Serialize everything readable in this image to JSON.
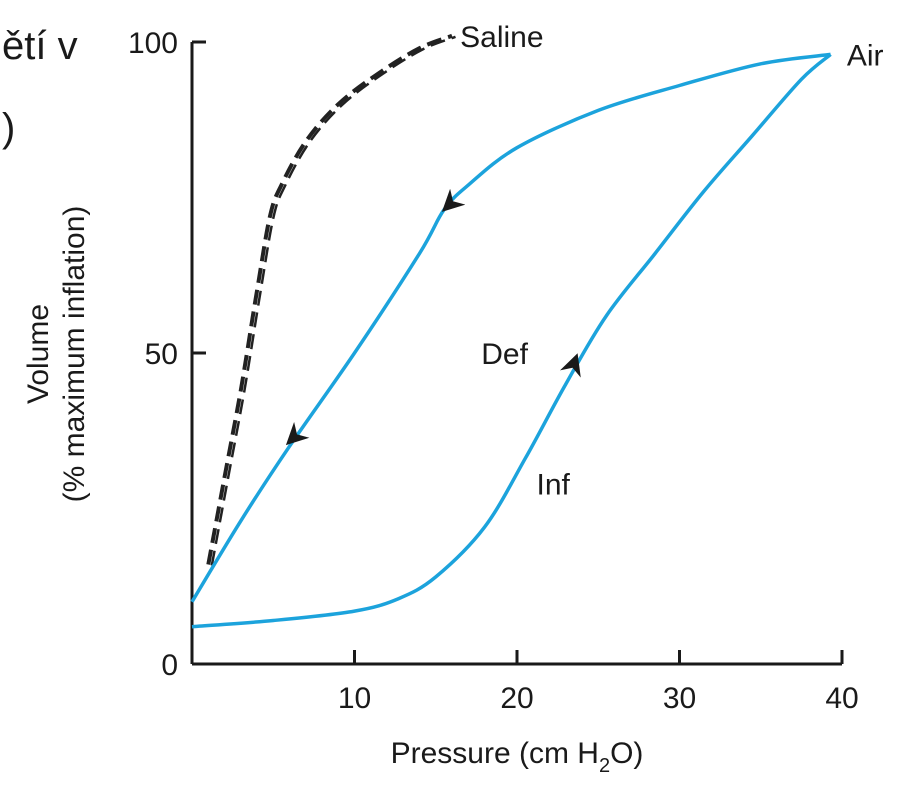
{
  "background_fragment": {
    "line1": "ětí v",
    "line2": ")"
  },
  "chart_data": {
    "type": "line",
    "xlabel": {
      "pre": "Pressure (cm H",
      "sub": "2",
      "post": "O)"
    },
    "ylabel_line1": "Volume",
    "ylabel_line2": "(% maximum inflation)",
    "xlim": [
      0,
      40
    ],
    "ylim": [
      0,
      100
    ],
    "x_ticks": [
      10,
      20,
      30,
      40
    ],
    "y_ticks": [
      0,
      50,
      100
    ],
    "x_tick_labels": [
      "10",
      "20",
      "30",
      "40"
    ],
    "y_tick_labels": [
      "0",
      "50",
      "100"
    ],
    "grid": false,
    "colors": {
      "air": "#1ca3dc",
      "saline": "#222222",
      "axis": "#1a1a1a"
    },
    "series": [
      {
        "name": "Saline",
        "style": "dashed",
        "x": [
          1,
          2,
          3,
          4,
          4.8,
          5.5,
          7,
          9,
          11.5,
          14,
          16
        ],
        "y": [
          16,
          30,
          44,
          60,
          72,
          77,
          84,
          90,
          95,
          99,
          101
        ]
      },
      {
        "name": "Inf",
        "style": "solid",
        "x": [
          0,
          5,
          10,
          12.7,
          15,
          18,
          20.5,
          23,
          25.5,
          28.5,
          31.5,
          34.5,
          37.5,
          39.3
        ],
        "y": [
          6,
          7,
          8.5,
          10.5,
          14,
          22,
          33,
          45,
          56,
          66,
          76,
          85,
          94,
          98
        ]
      },
      {
        "name": "Def",
        "style": "solid",
        "x": [
          39.3,
          35,
          30,
          25,
          20,
          17,
          15.5,
          14,
          10,
          6,
          3,
          0
        ],
        "y": [
          98,
          96.5,
          93,
          89,
          83,
          77,
          73,
          66,
          50,
          35,
          23,
          10
        ]
      }
    ],
    "annotations": [
      {
        "text": "Saline",
        "x": 16.5,
        "y": 101
      },
      {
        "text": "Air",
        "x": 40.3,
        "y": 98
      },
      {
        "text": "Def",
        "x": 17.8,
        "y": 50
      },
      {
        "text": "Inf",
        "x": 21.2,
        "y": 29
      }
    ],
    "arrows": [
      {
        "x": 16.1,
        "y": 74.5,
        "direction": "down-left"
      },
      {
        "x": 6.5,
        "y": 37,
        "direction": "down-left"
      },
      {
        "x": 23.4,
        "y": 47.5,
        "direction": "up"
      }
    ]
  }
}
